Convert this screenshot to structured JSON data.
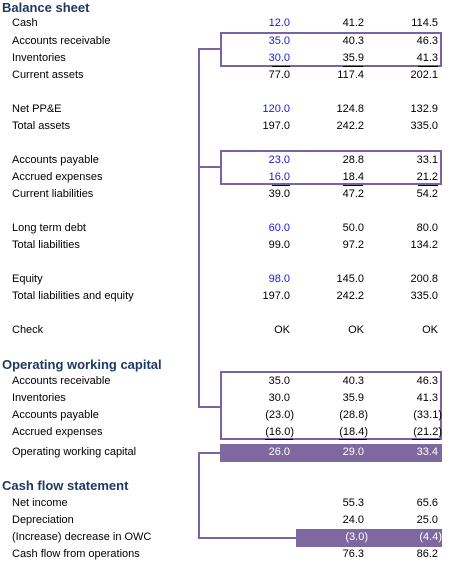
{
  "balance_sheet": {
    "title": "Balance sheet",
    "rows": [
      {
        "label": "Cash",
        "values": [
          "12.0",
          "41.2",
          "114.5"
        ]
      },
      {
        "label": "Accounts receivable",
        "values": [
          "35.0",
          "40.3",
          "46.3"
        ]
      },
      {
        "label": "Inventories",
        "values": [
          "30.0",
          "35.9",
          "41.3"
        ]
      },
      {
        "label": "Current assets",
        "values": [
          "77.0",
          "117.4",
          "202.1"
        ]
      },
      {
        "label": "Net PP&E",
        "values": [
          "120.0",
          "124.8",
          "132.9"
        ]
      },
      {
        "label": "Total assets",
        "values": [
          "197.0",
          "242.2",
          "335.0"
        ]
      },
      {
        "label": "Accounts payable",
        "values": [
          "23.0",
          "28.8",
          "33.1"
        ]
      },
      {
        "label": "Accrued expenses",
        "values": [
          "16.0",
          "18.4",
          "21.2"
        ]
      },
      {
        "label": "Current liabilities",
        "values": [
          "39.0",
          "47.2",
          "54.2"
        ]
      },
      {
        "label": "Long term debt",
        "values": [
          "60.0",
          "50.0",
          "80.0"
        ]
      },
      {
        "label": "Total liabilities",
        "values": [
          "99.0",
          "97.2",
          "134.2"
        ]
      },
      {
        "label": "Equity",
        "values": [
          "98.0",
          "145.0",
          "200.8"
        ]
      },
      {
        "label": "Total liabilities and equity",
        "values": [
          "197.0",
          "242.2",
          "335.0"
        ]
      },
      {
        "label": "Check",
        "values": [
          "OK",
          "OK",
          "OK"
        ]
      }
    ]
  },
  "owc": {
    "title": "Operating working capital",
    "rows": [
      {
        "label": "Accounts receivable",
        "values": [
          "35.0",
          "40.3",
          "46.3"
        ]
      },
      {
        "label": "Inventories",
        "values": [
          "30.0",
          "35.9",
          "41.3"
        ]
      },
      {
        "label": "Accounts payable",
        "values": [
          "(23.0)",
          "(28.8)",
          "(33.1)"
        ]
      },
      {
        "label": "Accrued expenses",
        "values": [
          "(16.0)",
          "(18.4)",
          "(21.2)"
        ]
      },
      {
        "label": "Operating working capital",
        "values": [
          "26.0",
          "29.0",
          "33.4"
        ]
      }
    ]
  },
  "cash_flow": {
    "title": "Cash flow statement",
    "rows": [
      {
        "label": "Net income",
        "values": [
          "",
          "55.3",
          "65.6"
        ]
      },
      {
        "label": "Depreciation",
        "values": [
          "",
          "24.0",
          "25.0"
        ]
      },
      {
        "label": "(Increase) decrease in OWC",
        "values": [
          "",
          "(3.0)",
          "(4.4)"
        ]
      },
      {
        "label": "Cash flow from operations",
        "values": [
          "",
          "76.3",
          "86.2"
        ]
      }
    ]
  },
  "colors": {
    "section_title": "#1f3864",
    "input_blue": "#1a1adc",
    "link_purple": "#7a62a6",
    "highlight_fill": "#7f679f"
  }
}
